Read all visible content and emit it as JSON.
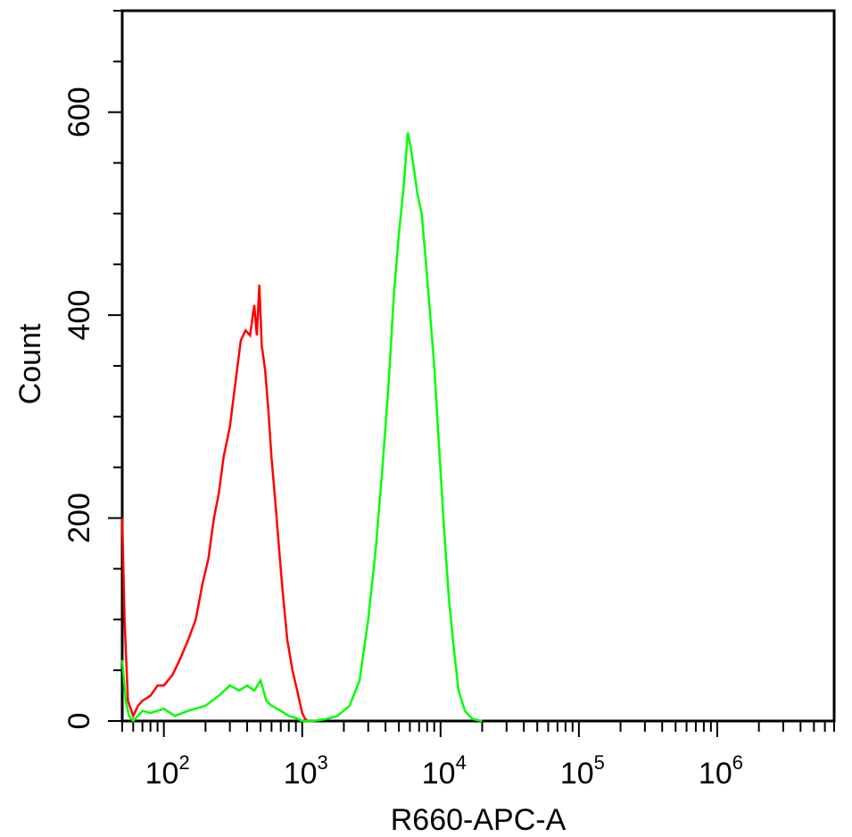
{
  "chart_data": {
    "type": "line",
    "title": "",
    "xlabel": "R660-APC-A",
    "ylabel": "Count",
    "xscale": "log",
    "xlim": [
      50,
      7000000
    ],
    "ylim": [
      0,
      700
    ],
    "grid": false,
    "legend": "none",
    "x_ticks": [
      {
        "value": 100,
        "base": "10",
        "exp": "2"
      },
      {
        "value": 1000,
        "base": "10",
        "exp": "3"
      },
      {
        "value": 10000,
        "base": "10",
        "exp": "4"
      },
      {
        "value": 100000,
        "base": "10",
        "exp": "5"
      },
      {
        "value": 1000000,
        "base": "10",
        "exp": "6"
      }
    ],
    "y_ticks": [
      {
        "value": 0,
        "label": "0"
      },
      {
        "value": 200,
        "label": "200"
      },
      {
        "value": 400,
        "label": "400"
      },
      {
        "value": 600,
        "label": "600"
      }
    ],
    "series": [
      {
        "color": "#ff0000",
        "x": [
          50,
          52,
          55,
          60,
          65,
          70,
          80,
          90,
          100,
          115,
          130,
          150,
          170,
          190,
          210,
          230,
          250,
          270,
          300,
          330,
          360,
          390,
          420,
          450,
          470,
          490,
          510,
          540,
          570,
          600,
          640,
          680,
          720,
          780,
          850,
          920,
          1000,
          1050,
          1100,
          1200
        ],
        "y": [
          200,
          100,
          20,
          5,
          15,
          20,
          25,
          35,
          35,
          45,
          60,
          80,
          100,
          135,
          160,
          200,
          225,
          260,
          290,
          335,
          375,
          385,
          380,
          410,
          380,
          430,
          370,
          345,
          305,
          260,
          215,
          170,
          130,
          80,
          50,
          30,
          8,
          2,
          0,
          0
        ]
      },
      {
        "color": "#00ff00",
        "x": [
          50,
          53,
          56,
          60,
          70,
          80,
          100,
          120,
          150,
          200,
          250,
          300,
          350,
          400,
          450,
          500,
          550,
          600,
          700,
          800,
          900,
          1000,
          1200,
          1500,
          1800,
          2200,
          2600,
          3000,
          3400,
          3800,
          4200,
          4600,
          5000,
          5400,
          5800,
          6100,
          6400,
          6800,
          7300,
          7800,
          8300,
          9000,
          9800,
          10600,
          11500,
          12500,
          13500,
          15000,
          17000,
          20000
        ],
        "y": [
          60,
          20,
          5,
          0,
          10,
          8,
          12,
          5,
          10,
          15,
          25,
          35,
          30,
          35,
          30,
          40,
          20,
          15,
          10,
          5,
          3,
          0,
          0,
          2,
          5,
          15,
          40,
          100,
          170,
          250,
          330,
          420,
          480,
          525,
          580,
          565,
          545,
          520,
          500,
          455,
          410,
          350,
          265,
          190,
          120,
          70,
          30,
          10,
          2,
          0
        ]
      }
    ]
  }
}
